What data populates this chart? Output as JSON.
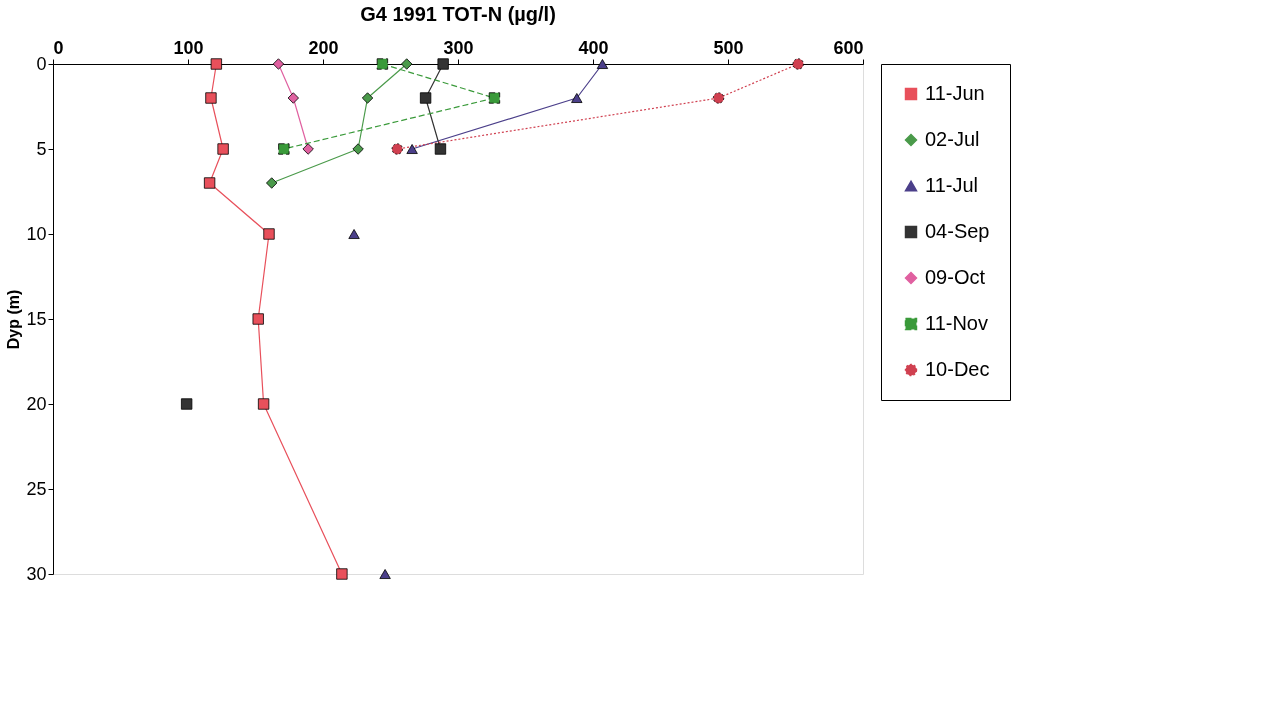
{
  "chart_data": {
    "type": "line",
    "title": "G4 1991 TOT-N (µg/l)",
    "ylabel": "Dyp (m)",
    "xlim": [
      0,
      600
    ],
    "xticks": [
      0,
      100,
      200,
      300,
      400,
      500,
      600
    ],
    "ylim": [
      30,
      0
    ],
    "yticks": [
      0,
      5,
      10,
      15,
      20,
      25,
      30
    ],
    "grid": false,
    "legend": "right",
    "series": [
      {
        "name": "11-Jun",
        "color": "#e8505b",
        "marker": "square",
        "line_style": "solid",
        "x": [
          121,
          117,
          126,
          116,
          160,
          152,
          156,
          214
        ],
        "values": [
          0,
          2,
          5,
          7,
          10,
          15,
          20,
          30
        ]
      },
      {
        "name": "02-Jul",
        "color": "#4a9a4a",
        "marker": "diamond",
        "line_style": "solid",
        "x": [
          262,
          233,
          226,
          162
        ],
        "values": [
          0,
          2,
          5,
          7
        ]
      },
      {
        "name": "11-Jul",
        "color": "#4b3f8a",
        "marker": "triangle",
        "line_style": "solid",
        "x": [
          407,
          388,
          266,
          null,
          223,
          null,
          246
        ],
        "values": [
          0,
          2,
          5,
          null,
          10,
          null,
          30
        ]
      },
      {
        "name": "04-Sep",
        "color": "#333333",
        "marker": "square",
        "line_style": "solid",
        "x": [
          289,
          276,
          287,
          null,
          99
        ],
        "values": [
          0,
          2,
          5,
          null,
          20
        ]
      },
      {
        "name": "09-Oct",
        "color": "#e060a0",
        "marker": "diamond",
        "line_style": "solid",
        "x": [
          167,
          178,
          189
        ],
        "values": [
          0,
          2,
          5
        ]
      },
      {
        "name": "11-Nov",
        "color": "#3a9a3a",
        "marker": "square",
        "line_style": "dashed",
        "x": [
          244,
          327,
          171
        ],
        "values": [
          0,
          2,
          5
        ]
      },
      {
        "name": "10-Dec",
        "color": "#d04050",
        "marker": "circle",
        "line_style": "dotted",
        "x": [
          552,
          493,
          255
        ],
        "values": [
          0,
          2,
          5
        ]
      }
    ]
  }
}
